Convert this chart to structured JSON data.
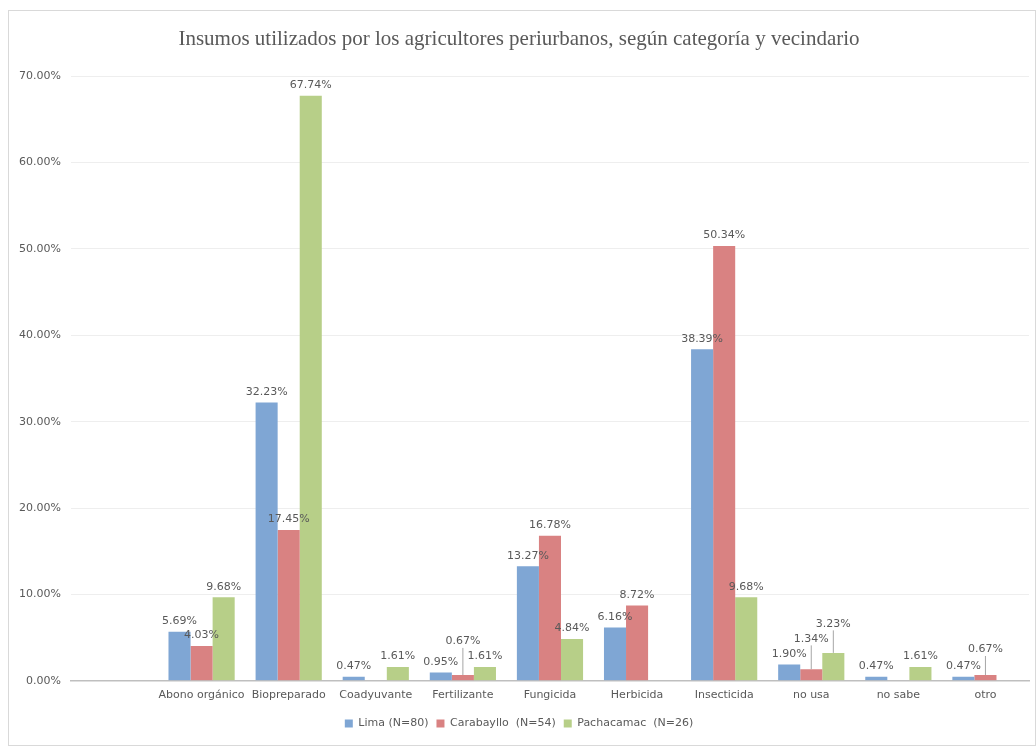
{
  "chart_data": {
    "type": "bar",
    "title": "Insumos utilizados por los agricultores periurbanos, según categoría y vecindario",
    "categories": [
      null,
      "Abono orgánico",
      "Biopreparado",
      "Coadyuvante",
      "Fertilizante",
      "Fungicida",
      "Herbicida",
      "Insecticida",
      "no usa",
      "no sabe",
      "otro"
    ],
    "series": [
      {
        "name": "Lima (N=80)",
        "color": "#7fa6d4",
        "values": [
          null,
          5.69,
          32.23,
          0.47,
          0.95,
          13.27,
          6.16,
          38.39,
          1.9,
          0.47,
          0.47
        ],
        "value_labels": [
          null,
          "5.69%",
          "32.23%",
          "0.47%",
          "0.95%",
          "13.27%",
          "6.16%",
          "38.39%",
          "1.90%",
          "0.47%",
          "0.47%"
        ]
      },
      {
        "name": "Carabayllo  (N=54)",
        "color": "#d98282",
        "values": [
          null,
          4.03,
          17.45,
          null,
          0.67,
          16.78,
          8.72,
          50.34,
          1.34,
          null,
          0.67
        ],
        "value_labels": [
          null,
          "4.03%",
          "17.45%",
          null,
          "0.67%",
          "16.78%",
          "8.72%",
          "50.34%",
          "1.34%",
          null,
          "0.67%"
        ]
      },
      {
        "name": "Pachacamac  (N=26)",
        "color": "#b7cf88",
        "values": [
          null,
          9.68,
          67.74,
          1.61,
          1.61,
          4.84,
          null,
          9.68,
          3.23,
          1.61,
          null
        ],
        "value_labels": [
          null,
          "9.68%",
          "67.74%",
          "1.61%",
          "1.61%",
          "4.84%",
          null,
          "9.68%",
          "3.23%",
          "1.61%",
          null
        ]
      }
    ],
    "ylim": [
      0,
      70
    ],
    "yticks": [
      {
        "value": 0,
        "label": "0.00%"
      },
      {
        "value": 10,
        "label": "10.00%"
      },
      {
        "value": 20,
        "label": "20.00%"
      },
      {
        "value": 30,
        "label": "30.00%"
      },
      {
        "value": 40,
        "label": "40.00%"
      },
      {
        "value": 50,
        "label": "50.00%"
      },
      {
        "value": 60,
        "label": "60.00%"
      },
      {
        "value": 70,
        "label": "70.00%"
      }
    ],
    "grid": "y",
    "legend": "bottom"
  }
}
